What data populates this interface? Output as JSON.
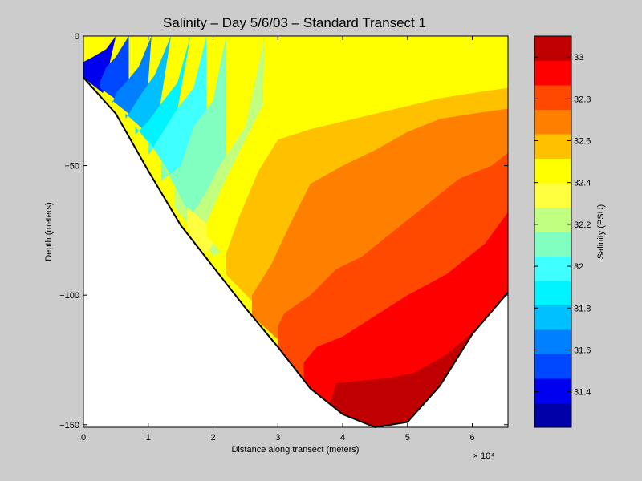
{
  "chart_data": {
    "type": "heatmap",
    "subtype": "filled-contour",
    "title": "Salinity – Day 5/6/03 – Standard Transect 1",
    "xlabel": "Distance along transect (meters)",
    "ylabel": "Depth (meters)",
    "x_scale_label": "× 10⁴",
    "x_multiplier": 10000,
    "xlim": [
      0,
      6.55
    ],
    "ylim": [
      -151,
      0
    ],
    "xticks": [
      0,
      1,
      2,
      3,
      4,
      5,
      6
    ],
    "xtick_labels": [
      "0",
      "1",
      "2",
      "3",
      "4",
      "5",
      "6"
    ],
    "yticks": [
      0,
      -50,
      -100,
      -150
    ],
    "ytick_labels": [
      "0",
      "−50",
      "−100",
      "−150"
    ],
    "colorbar": {
      "label": "Salinity (PSU)",
      "range": [
        31.23,
        33.1
      ],
      "ticks": [
        31.4,
        31.6,
        31.8,
        32.0,
        32.2,
        32.4,
        32.6,
        32.8,
        33.0
      ],
      "tick_labels": [
        "31.4",
        "31.6",
        "31.8",
        "32",
        "32.2",
        "32.4",
        "32.6",
        "32.8",
        "33"
      ],
      "levels": [
        {
          "color": "#0000a8"
        },
        {
          "color": "#0000f0"
        },
        {
          "color": "#0048ff"
        },
        {
          "color": "#0080ff"
        },
        {
          "color": "#00c0ff"
        },
        {
          "color": "#00f4ff"
        },
        {
          "color": "#40ffff"
        },
        {
          "color": "#80ffc0"
        },
        {
          "color": "#c0ff80"
        },
        {
          "color": "#ffff40"
        },
        {
          "color": "#ffff00"
        },
        {
          "color": "#ffc000"
        },
        {
          "color": "#ff8000"
        },
        {
          "color": "#ff4800"
        },
        {
          "color": "#ff0000"
        },
        {
          "color": "#c00000"
        }
      ]
    },
    "bottom_profile": {
      "x": [
        0,
        0.5,
        1,
        1.5,
        2,
        2.5,
        3,
        3.5,
        4,
        4.5,
        5,
        5.5,
        6,
        6.55
      ],
      "depth": [
        -16,
        -30,
        -52,
        -73,
        -89,
        -105,
        -120,
        -136,
        -146,
        -151,
        -149,
        -135,
        -115,
        -99
      ]
    },
    "regions": [
      {
        "level": 15,
        "x": [
          3.8,
          4.5,
          5.0,
          5.5,
          6.1,
          6.5,
          6.55,
          6.55,
          6.2,
          5.6,
          5.1,
          4.7,
          4.3,
          3.9,
          3.8
        ],
        "depth": [
          -148,
          -151,
          -149,
          -135,
          -115,
          -101,
          -99,
          -100,
          -110,
          -123,
          -130,
          -132,
          -133,
          -134,
          -142
        ]
      },
      {
        "level": 14,
        "x": [
          3.4,
          4.5,
          5.0,
          5.5,
          6.1,
          6.55,
          6.55,
          6.2,
          5.6,
          5.0,
          4.5,
          4.0,
          3.6,
          3.4
        ],
        "depth": [
          -138,
          -151,
          -149,
          -135,
          -115,
          -99,
          -68,
          -80,
          -92,
          -100,
          -108,
          -116,
          -120,
          -126
        ]
      },
      {
        "level": 13,
        "x": [
          3.0,
          4.5,
          5.0,
          5.5,
          6.1,
          6.55,
          6.55,
          6.3,
          5.8,
          5.3,
          4.8,
          4.3,
          3.9,
          3.5,
          3.1,
          3.0
        ],
        "depth": [
          -125,
          -151,
          -149,
          -135,
          -115,
          -99,
          -45,
          -50,
          -55,
          -65,
          -75,
          -85,
          -90,
          -100,
          -107,
          -112
        ]
      },
      {
        "level": 12,
        "x": [
          2.6,
          4.5,
          5.0,
          5.5,
          6.1,
          6.55,
          6.55,
          6.0,
          5.5,
          5.0,
          4.5,
          4.0,
          3.5,
          3.2,
          2.9,
          2.6
        ],
        "depth": [
          -108,
          -151,
          -149,
          -135,
          -115,
          -99,
          -28,
          -30,
          -32,
          -37,
          -44,
          -50,
          -57,
          -72,
          -88,
          -100
        ]
      },
      {
        "level": 11,
        "x": [
          2.2,
          4.5,
          5.0,
          5.5,
          6.1,
          6.55,
          6.55,
          6.0,
          5.5,
          5.0,
          4.5,
          4.0,
          3.5,
          3.0,
          2.7,
          2.4,
          2.2
        ],
        "depth": [
          -92,
          -151,
          -149,
          -135,
          -115,
          -99,
          -20,
          -22,
          -24,
          -27,
          -30,
          -33,
          -36,
          -40,
          -52,
          -70,
          -84
        ]
      },
      {
        "level": 10,
        "x": [
          1.9,
          4.5,
          5.0,
          5.5,
          6.1,
          6.55,
          6.55,
          3.45,
          3.0,
          2.6,
          2.2,
          1.9
        ],
        "depth": [
          -77,
          -151,
          -149,
          -135,
          -115,
          -99,
          0,
          0,
          -15,
          -35,
          -55,
          -72
        ]
      },
      {
        "level": 9,
        "x": [
          1.6,
          3.2,
          3.45,
          3.4,
          3.2,
          2.9,
          2.5,
          2.1,
          1.7,
          1.6
        ],
        "depth": [
          -66,
          -100,
          0,
          -20,
          -30,
          -45,
          -62,
          -78,
          -88,
          -72
        ]
      },
      {
        "level": 8,
        "x": [
          1.4,
          2.0,
          2.7,
          2.8,
          2.5,
          2.1,
          1.9,
          1.6,
          1.4
        ],
        "depth": [
          -58,
          -85,
          -75,
          0,
          -35,
          -50,
          -60,
          -72,
          -66
        ]
      },
      {
        "level": 7,
        "x": [
          1.2,
          1.7,
          2.2,
          2.2,
          2.0,
          1.7,
          1.5,
          1.2
        ],
        "depth": [
          -48,
          -72,
          -60,
          0,
          -25,
          -35,
          -50,
          -56
        ]
      },
      {
        "level": 6,
        "x": [
          1.0,
          1.5,
          1.9,
          1.9,
          1.7,
          1.45,
          1.2,
          1.0
        ],
        "depth": [
          -40,
          -60,
          -40,
          0,
          -20,
          -28,
          -38,
          -46
        ]
      },
      {
        "level": 5,
        "x": [
          0.8,
          1.3,
          1.65,
          1.45,
          1.2,
          1.0,
          0.8
        ],
        "depth": [
          -35,
          -50,
          0,
          -18,
          -26,
          -33,
          -38
        ]
      },
      {
        "level": 4,
        "x": [
          0.65,
          1.1,
          1.35,
          1.1,
          0.9,
          0.75,
          0.65
        ],
        "depth": [
          -30,
          -40,
          0,
          -15,
          -22,
          -28,
          -32
        ]
      },
      {
        "level": 3,
        "x": [
          0.45,
          0.95,
          1.05,
          0.85,
          0.65,
          0.5,
          0.45
        ],
        "depth": [
          -25,
          -35,
          0,
          -12,
          -18,
          -22,
          -26
        ]
      },
      {
        "level": 2,
        "x": [
          0.25,
          0.7,
          0.7,
          0.5,
          0.35,
          0.25
        ],
        "depth": [
          -20,
          -28,
          0,
          -8,
          -12,
          -18
        ]
      },
      {
        "level": 1,
        "x": [
          0.0,
          0.3,
          0.5,
          0.35,
          0.15,
          0.0
        ],
        "depth": [
          -16,
          -22,
          0,
          -5,
          -8,
          -10
        ]
      }
    ]
  }
}
